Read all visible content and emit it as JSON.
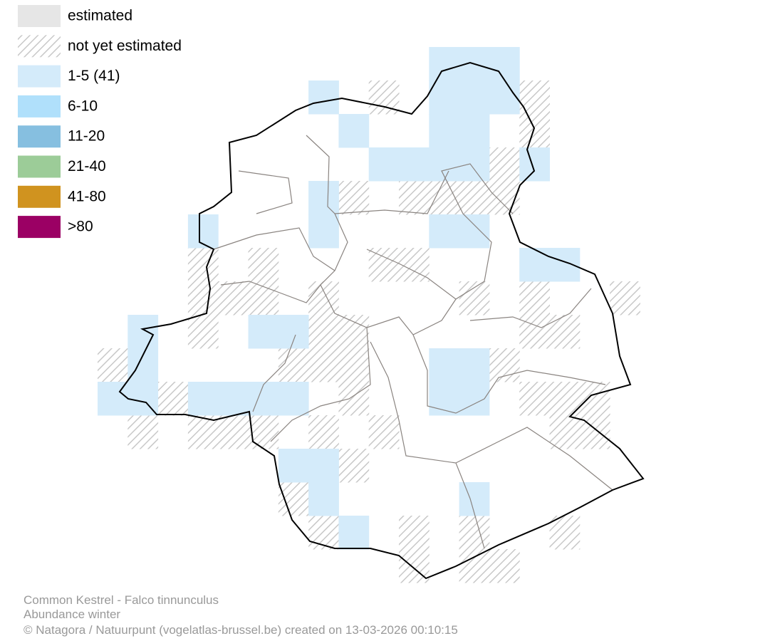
{
  "legend": {
    "items": [
      {
        "label": "estimated"
      },
      {
        "label": "not yet estimated"
      },
      {
        "label": "1-5 (41)"
      },
      {
        "label": "6-10"
      },
      {
        "label": "11-20"
      },
      {
        "label": "21-40"
      },
      {
        "label": "41-80"
      },
      {
        "label": ">80"
      }
    ]
  },
  "footer": {
    "lines": [
      "Common Kestrel - Falco tinnunculus",
      "Abundance winter",
      "© Natagora / Natuurpunt (vogelatlas-brussel.be) created on 13-03-2026 00:10:15"
    ]
  }
}
